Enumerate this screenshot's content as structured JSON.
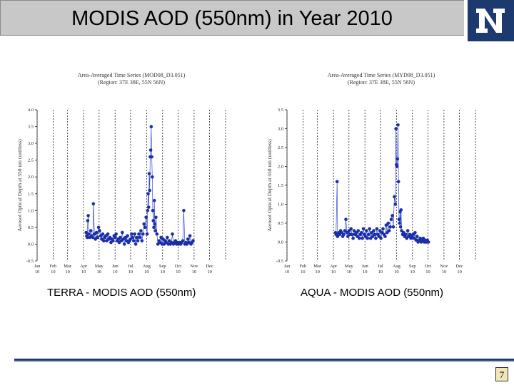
{
  "slide": {
    "title": "MODIS AOD (550nm) in Year 2010",
    "logo_letter": "N",
    "page_number": "7"
  },
  "chart_data": [
    {
      "type": "scatter",
      "caption": "TERRA - MODIS AOD (550nm)",
      "title": "Area-Averaged Time Series (MOD08_D3.051)",
      "subtitle": "(Region: 37E 38E, 55N 56N)",
      "ylabel": "Aerosol Optical Depth at 550 nm (unitless)",
      "ylim": [
        -0.5,
        4.0
      ],
      "yticks": [
        "-0.5",
        "0.0",
        "0.5",
        "1.0",
        "1.5",
        "2.0",
        "2.5",
        "3.0",
        "3.5",
        "4.0"
      ],
      "xlim": [
        1,
        366
      ],
      "xticks": [
        {
          "day": 1,
          "month": "Jan",
          "year": "10"
        },
        {
          "day": 32,
          "month": "Feb",
          "year": "10"
        },
        {
          "day": 60,
          "month": "Mar",
          "year": "10"
        },
        {
          "day": 91,
          "month": "Apr",
          "year": "10"
        },
        {
          "day": 121,
          "month": "May",
          "year": "10"
        },
        {
          "day": 152,
          "month": "Jun",
          "year": "10"
        },
        {
          "day": 182,
          "month": "Jul",
          "year": "10"
        },
        {
          "day": 213,
          "month": "Aug",
          "year": "10"
        },
        {
          "day": 244,
          "month": "Sep",
          "year": "10"
        },
        {
          "day": 274,
          "month": "Oct",
          "year": "10"
        },
        {
          "day": 305,
          "month": "Nov",
          "year": "10"
        },
        {
          "day": 335,
          "month": "Dec",
          "year": "10"
        }
      ],
      "grid": "vertical dotted at month starts",
      "series": [
        {
          "color": "#1a2ea8",
          "points": [
            [
              96,
              0.35
            ],
            [
              97,
              0.25
            ],
            [
              98,
              0.2
            ],
            [
              99,
              0.7
            ],
            [
              100,
              0.85
            ],
            [
              101,
              0.3
            ],
            [
              103,
              0.2
            ],
            [
              105,
              0.4
            ],
            [
              107,
              0.25
            ],
            [
              109,
              0.2
            ],
            [
              110,
              1.2
            ],
            [
              112,
              0.3
            ],
            [
              114,
              0.15
            ],
            [
              116,
              0.35
            ],
            [
              118,
              0.2
            ],
            [
              120,
              0.5
            ],
            [
              122,
              0.4
            ],
            [
              124,
              0.25
            ],
            [
              126,
              0.15
            ],
            [
              128,
              0.3
            ],
            [
              130,
              0.1
            ],
            [
              132,
              0.2
            ],
            [
              134,
              0.25
            ],
            [
              136,
              0.1
            ],
            [
              138,
              0.3
            ],
            [
              140,
              0.15
            ],
            [
              142,
              0.2
            ],
            [
              144,
              0.05
            ],
            [
              146,
              0.15
            ],
            [
              148,
              0.1
            ],
            [
              150,
              0.25
            ],
            [
              152,
              0.2
            ],
            [
              154,
              0.3
            ],
            [
              156,
              0.1
            ],
            [
              158,
              0.15
            ],
            [
              160,
              0.05
            ],
            [
              162,
              0.2
            ],
            [
              164,
              0.1
            ],
            [
              166,
              0.35
            ],
            [
              168,
              0.15
            ],
            [
              170,
              0.0
            ],
            [
              172,
              0.2
            ],
            [
              174,
              0.1
            ],
            [
              176,
              0.25
            ],
            [
              178,
              0.05
            ],
            [
              180,
              0.1
            ],
            [
              182,
              0.15
            ],
            [
              184,
              0.3
            ],
            [
              186,
              0.2
            ],
            [
              188,
              0.1
            ],
            [
              190,
              0.3
            ],
            [
              192,
              0.0
            ],
            [
              194,
              0.2
            ],
            [
              196,
              0.1
            ],
            [
              198,
              0.3
            ],
            [
              200,
              0.2
            ],
            [
              202,
              0.4
            ],
            [
              204,
              0.1
            ],
            [
              206,
              0.3
            ],
            [
              208,
              0.6
            ],
            [
              210,
              0.5
            ],
            [
              212,
              0.8
            ],
            [
              214,
              0.3
            ],
            [
              215,
              1.0
            ],
            [
              216,
              1.5
            ],
            [
              217,
              1.1
            ],
            [
              218,
              2.1
            ],
            [
              219,
              1.6
            ],
            [
              220,
              2.6
            ],
            [
              221,
              2.8
            ],
            [
              222,
              3.5
            ],
            [
              223,
              2.6
            ],
            [
              224,
              2.0
            ],
            [
              225,
              1.0
            ],
            [
              226,
              0.7
            ],
            [
              227,
              0.5
            ],
            [
              228,
              1.3
            ],
            [
              229,
              0.6
            ],
            [
              230,
              0.4
            ],
            [
              231,
              0.8
            ],
            [
              233,
              0.3
            ],
            [
              235,
              0.0
            ],
            [
              237,
              0.1
            ],
            [
              239,
              0.05
            ],
            [
              241,
              0.2
            ],
            [
              243,
              0.0
            ],
            [
              245,
              0.15
            ],
            [
              247,
              0.0
            ],
            [
              249,
              0.1
            ],
            [
              251,
              0.05
            ],
            [
              253,
              0.2
            ],
            [
              255,
              0.0
            ],
            [
              257,
              0.1
            ],
            [
              259,
              0.0
            ],
            [
              261,
              0.05
            ],
            [
              263,
              0.3
            ],
            [
              265,
              0.0
            ],
            [
              267,
              0.05
            ],
            [
              269,
              0.1
            ],
            [
              271,
              0.0
            ],
            [
              273,
              0.05
            ],
            [
              275,
              0.0
            ],
            [
              277,
              0.05
            ],
            [
              279,
              0.0
            ],
            [
              281,
              0.05
            ],
            [
              283,
              0.1
            ],
            [
              285,
              1.0
            ],
            [
              287,
              0.0
            ],
            [
              289,
              0.05
            ],
            [
              291,
              0.0
            ],
            [
              293,
              0.15
            ],
            [
              295,
              0.05
            ],
            [
              297,
              0.25
            ],
            [
              299,
              0.0
            ],
            [
              301,
              0.05
            ],
            [
              303,
              0.1
            ]
          ]
        }
      ]
    },
    {
      "type": "scatter",
      "caption": "AQUA - MODIS AOD (550nm)",
      "title": "Area-Averaged Time Series (MYD08_D3.051)",
      "subtitle": "(Region: 37E 38E, 55N 56N)",
      "ylabel": "Aerosol Optical Depth at 550 nm (unitless)",
      "ylim": [
        -0.5,
        3.5
      ],
      "yticks": [
        "-0.5",
        "0.0",
        "0.5",
        "1.0",
        "1.5",
        "2.0",
        "2.5",
        "3.0",
        "3.5"
      ],
      "xlim": [
        1,
        366
      ],
      "xticks": [
        {
          "day": 1,
          "month": "Jan",
          "year": "10"
        },
        {
          "day": 32,
          "month": "Feb",
          "year": "10"
        },
        {
          "day": 60,
          "month": "Mar",
          "year": "10"
        },
        {
          "day": 91,
          "month": "Apr",
          "year": "10"
        },
        {
          "day": 121,
          "month": "May",
          "year": "10"
        },
        {
          "day": 152,
          "month": "Jun",
          "year": "10"
        },
        {
          "day": 182,
          "month": "Jul",
          "year": "10"
        },
        {
          "day": 213,
          "month": "Aug",
          "year": "10"
        },
        {
          "day": 244,
          "month": "Sep",
          "year": "10"
        },
        {
          "day": 274,
          "month": "Oct",
          "year": "10"
        },
        {
          "day": 305,
          "month": "Nov",
          "year": "10"
        },
        {
          "day": 335,
          "month": "Dec",
          "year": "10"
        }
      ],
      "grid": "vertical dotted at month starts",
      "series": [
        {
          "color": "#1a2ea8",
          "points": [
            [
              95,
              0.25
            ],
            [
              96,
              0.2
            ],
            [
              98,
              1.6
            ],
            [
              99,
              0.15
            ],
            [
              101,
              0.25
            ],
            [
              103,
              0.2
            ],
            [
              105,
              0.3
            ],
            [
              107,
              0.25
            ],
            [
              109,
              0.15
            ],
            [
              111,
              0.2
            ],
            [
              113,
              0.3
            ],
            [
              115,
              0.6
            ],
            [
              117,
              0.25
            ],
            [
              119,
              0.15
            ],
            [
              121,
              0.3
            ],
            [
              123,
              0.2
            ],
            [
              125,
              0.35
            ],
            [
              127,
              0.2
            ],
            [
              129,
              0.1
            ],
            [
              131,
              0.3
            ],
            [
              133,
              0.2
            ],
            [
              135,
              0.25
            ],
            [
              137,
              0.15
            ],
            [
              139,
              0.3
            ],
            [
              141,
              0.1
            ],
            [
              143,
              0.2
            ],
            [
              145,
              0.25
            ],
            [
              147,
              0.1
            ],
            [
              149,
              0.35
            ],
            [
              151,
              0.2
            ],
            [
              153,
              0.15
            ],
            [
              155,
              0.3
            ],
            [
              157,
              0.1
            ],
            [
              159,
              0.2
            ],
            [
              161,
              0.35
            ],
            [
              163,
              0.1
            ],
            [
              165,
              0.25
            ],
            [
              167,
              0.15
            ],
            [
              169,
              0.3
            ],
            [
              171,
              0.2
            ],
            [
              173,
              0.1
            ],
            [
              175,
              0.35
            ],
            [
              177,
              0.2
            ],
            [
              179,
              0.15
            ],
            [
              181,
              0.3
            ],
            [
              183,
              0.1
            ],
            [
              185,
              0.25
            ],
            [
              187,
              0.35
            ],
            [
              189,
              0.2
            ],
            [
              191,
              0.15
            ],
            [
              193,
              0.45
            ],
            [
              195,
              0.25
            ],
            [
              197,
              0.5
            ],
            [
              199,
              0.3
            ],
            [
              201,
              0.4
            ],
            [
              203,
              0.6
            ],
            [
              205,
              0.7
            ],
            [
              207,
              0.4
            ],
            [
              209,
              1.2
            ],
            [
              211,
              1.0
            ],
            [
              212,
              3.0
            ],
            [
              213,
              2.05
            ],
            [
              214,
              2.0
            ],
            [
              215,
              2.2
            ],
            [
              216,
              3.1
            ],
            [
              217,
              1.6
            ],
            [
              218,
              0.6
            ],
            [
              219,
              0.5
            ],
            [
              220,
              0.8
            ],
            [
              221,
              0.4
            ],
            [
              222,
              0.85
            ],
            [
              223,
              0.3
            ],
            [
              225,
              0.2
            ],
            [
              227,
              0.25
            ],
            [
              229,
              0.15
            ],
            [
              231,
              0.2
            ],
            [
              233,
              0.1
            ],
            [
              235,
              0.3
            ],
            [
              237,
              0.15
            ],
            [
              239,
              0.2
            ],
            [
              241,
              0.1
            ],
            [
              243,
              0.15
            ],
            [
              245,
              0.2
            ],
            [
              247,
              0.1
            ],
            [
              249,
              0.25
            ],
            [
              251,
              0.05
            ],
            [
              253,
              0.15
            ],
            [
              255,
              0.0
            ],
            [
              257,
              0.05
            ],
            [
              259,
              0.1
            ],
            [
              261,
              0.0
            ],
            [
              263,
              0.05
            ],
            [
              265,
              0.1
            ],
            [
              267,
              0.0
            ],
            [
              269,
              0.05
            ],
            [
              271,
              0.0
            ],
            [
              273,
              0.05
            ],
            [
              275,
              0.0
            ]
          ]
        }
      ]
    }
  ]
}
